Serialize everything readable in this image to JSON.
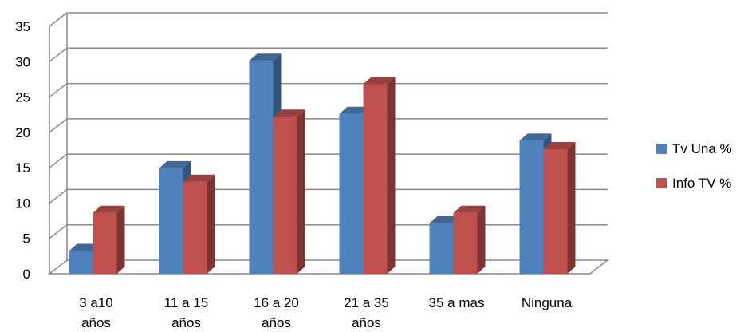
{
  "chart_data": {
    "type": "bar",
    "title": "",
    "xlabel": "",
    "ylabel": "",
    "ylim": [
      0,
      35
    ],
    "yticks": [
      0,
      5,
      10,
      15,
      20,
      25,
      30,
      35
    ],
    "grid": true,
    "legend_position": "right",
    "categories": [
      [
        "3 a10",
        "años"
      ],
      [
        "11 a 15",
        "años"
      ],
      [
        "16 a 20",
        "años"
      ],
      [
        "21 a 35",
        "años"
      ],
      [
        "35 a mas"
      ],
      [
        "Ninguna"
      ]
    ],
    "series": [
      {
        "name": "Tv Una %",
        "color": "#4F81BD",
        "values": [
          3.5,
          15.2,
          30.4,
          22.9,
          7.4,
          19.1
        ]
      },
      {
        "name": "Info TV %",
        "color": "#C0504D",
        "values": [
          8.9,
          13.3,
          22.5,
          27.1,
          8.9,
          17.9
        ]
      }
    ]
  }
}
